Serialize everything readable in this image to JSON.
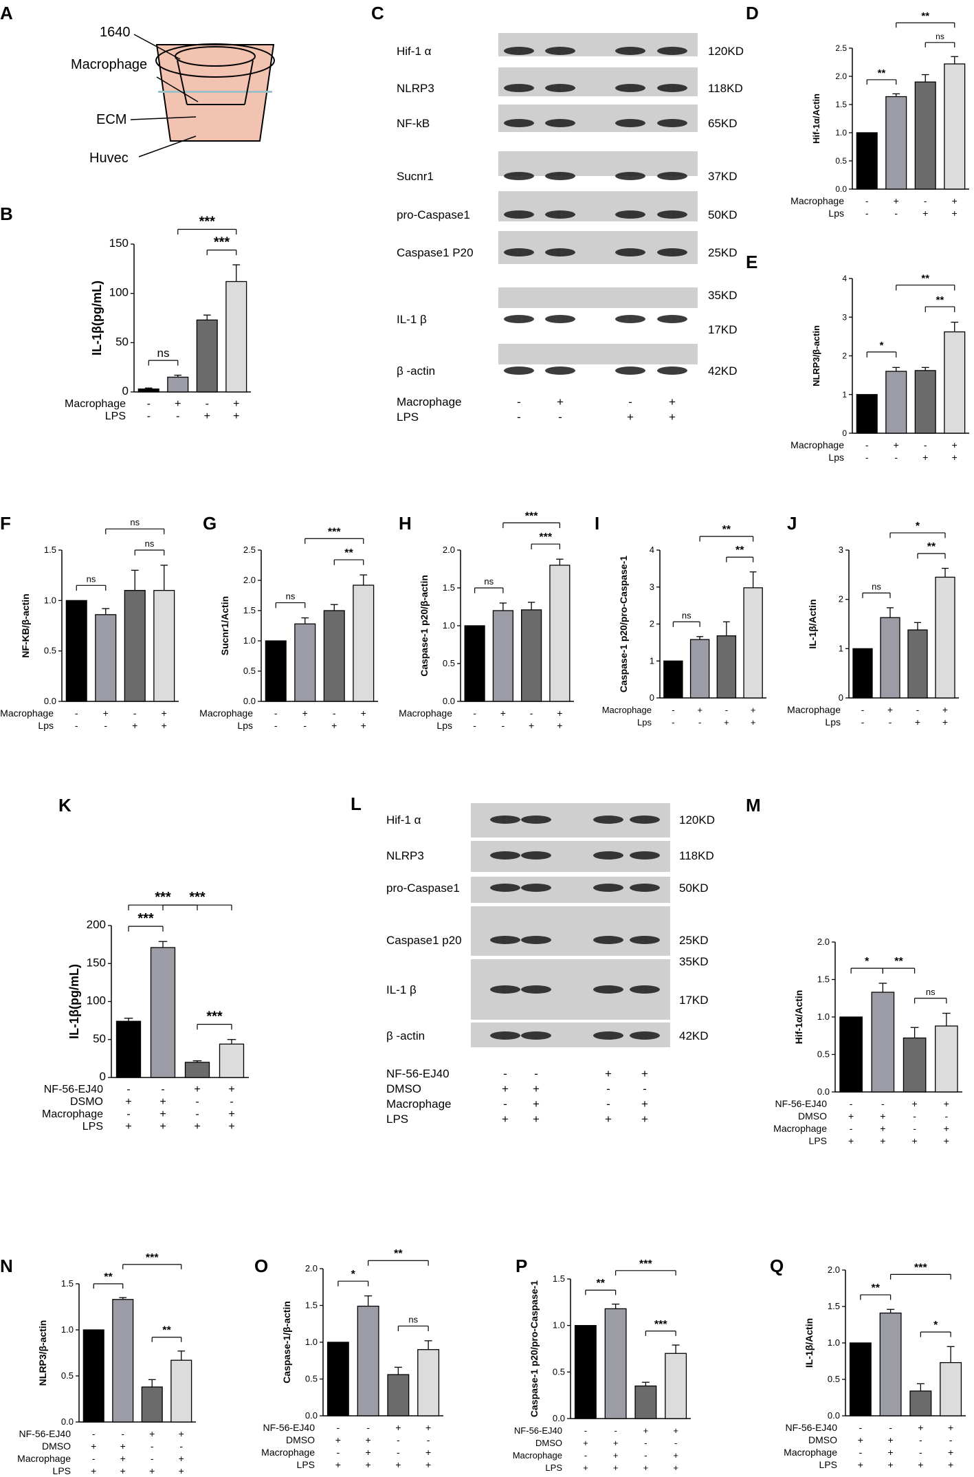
{
  "panel_labels": {
    "A": "A",
    "C": "C",
    "L": "L"
  },
  "schematic": {
    "labels": [
      "1640",
      "Macrophage",
      "ECM",
      "Huvec"
    ]
  },
  "colors": {
    "black": "#000000",
    "dark_gray": "#6b6b6b",
    "mid_gray": "#9c9ca6",
    "light_gray": "#dcdcdc",
    "ecm": "#f2c3b0",
    "medium": "#9cc0c8"
  },
  "blots": [
    {
      "panel": "C",
      "rows": [
        {
          "protein": "Hif-1 α",
          "size": "120KD"
        },
        {
          "protein": "NLRP3",
          "size": "118KD"
        },
        {
          "protein": "NF-kB",
          "size": "65KD"
        },
        {
          "protein": "Sucnr1",
          "size": "37KD"
        },
        {
          "protein": "pro-Caspase1",
          "size": "50KD"
        },
        {
          "protein": "Caspase1 P20",
          "size": "25KD"
        },
        {
          "protein": "IL-1 β",
          "size": "35KD",
          "size2": "17KD"
        },
        {
          "protein": "β -actin",
          "size": "42KD"
        }
      ],
      "conditions": [
        {
          "name": "Macrophage",
          "signs": [
            "-",
            "+",
            "-",
            "+"
          ]
        },
        {
          "name": "LPS",
          "signs": [
            "-",
            "-",
            "+",
            "+"
          ]
        }
      ]
    },
    {
      "panel": "L",
      "rows": [
        {
          "protein": "Hif-1 α",
          "size": "120KD"
        },
        {
          "protein": "NLRP3",
          "size": "118KD"
        },
        {
          "protein": "pro-Caspase1",
          "size": "50KD"
        },
        {
          "protein": "Caspase1 p20",
          "size": "25KD"
        },
        {
          "protein": "IL-1 β",
          "size": "35KD",
          "size2": "17KD"
        },
        {
          "protein": "β -actin",
          "size": "42KD"
        }
      ],
      "conditions": [
        {
          "name": "NF-56-EJ40",
          "signs": [
            "-",
            "-",
            "+",
            "+"
          ]
        },
        {
          "name": "DMSO",
          "signs": [
            "+",
            "+",
            "-",
            "-"
          ]
        },
        {
          "name": "Macrophage",
          "signs": [
            "-",
            "+",
            "-",
            "+"
          ]
        },
        {
          "name": "LPS",
          "signs": [
            "+",
            "+",
            "+",
            "+"
          ]
        }
      ]
    }
  ],
  "chart_data": [
    {
      "panel": "B",
      "type": "bar",
      "ylabel": "IL-1β(pg/mL)",
      "ylim": [
        0,
        150
      ],
      "yticks": [
        "0",
        "50",
        "100",
        "150"
      ],
      "values": [
        3,
        15,
        73,
        112
      ],
      "errors": [
        1,
        2,
        5,
        17
      ],
      "conditions": [
        {
          "name": "Macrophage",
          "signs": [
            "-",
            "+",
            "-",
            "+"
          ]
        },
        {
          "name": "LPS",
          "signs": [
            "-",
            "-",
            "+",
            "+"
          ]
        }
      ],
      "significance": [
        {
          "bars": [
            0,
            1
          ],
          "label": "ns"
        },
        {
          "bars": [
            2,
            3
          ],
          "label": "***"
        },
        {
          "bars": [
            1,
            3
          ],
          "label": "***"
        }
      ]
    },
    {
      "panel": "D",
      "type": "bar",
      "ylabel": "Hif-1α/Actin",
      "ylim": [
        0,
        2.5
      ],
      "yticks": [
        "0.0",
        "0.5",
        "1.0",
        "1.5",
        "2.0",
        "2.5"
      ],
      "values": [
        1.0,
        1.64,
        1.9,
        2.22
      ],
      "errors": [
        0,
        0.05,
        0.13,
        0.13
      ],
      "conditions": [
        {
          "name": "Macrophage",
          "signs": [
            "-",
            "+",
            "-",
            "+"
          ]
        },
        {
          "name": "Lps",
          "signs": [
            "-",
            "-",
            "+",
            "+"
          ]
        }
      ],
      "significance": [
        {
          "bars": [
            0,
            1
          ],
          "label": "**"
        },
        {
          "bars": [
            2,
            3
          ],
          "label": "ns"
        },
        {
          "bars": [
            1,
            3
          ],
          "label": "**"
        }
      ]
    },
    {
      "panel": "E",
      "type": "bar",
      "ylabel": "NLRP3/β-actin",
      "ylim": [
        0,
        4
      ],
      "yticks": [
        "0",
        "1",
        "2",
        "3",
        "4"
      ],
      "values": [
        1.0,
        1.6,
        1.62,
        2.62
      ],
      "errors": [
        0,
        0.1,
        0.08,
        0.25
      ],
      "conditions": [
        {
          "name": "Macrophage",
          "signs": [
            "-",
            "+",
            "-",
            "+"
          ]
        },
        {
          "name": "Lps",
          "signs": [
            "-",
            "-",
            "+",
            "+"
          ]
        }
      ],
      "significance": [
        {
          "bars": [
            0,
            1
          ],
          "label": "*"
        },
        {
          "bars": [
            2,
            3
          ],
          "label": "**"
        },
        {
          "bars": [
            1,
            3
          ],
          "label": "**"
        }
      ]
    },
    {
      "panel": "F",
      "type": "bar",
      "ylabel": "NF-KB/β-actin",
      "ylim": [
        0,
        1.5
      ],
      "yticks": [
        "0.0",
        "0.5",
        "1.0",
        "1.5"
      ],
      "values": [
        1.0,
        0.86,
        1.1,
        1.1
      ],
      "errors": [
        0,
        0.06,
        0.2,
        0.25
      ],
      "conditions": [
        {
          "name": "Macrophage",
          "signs": [
            "-",
            "+",
            "-",
            "+"
          ]
        },
        {
          "name": "Lps",
          "signs": [
            "-",
            "-",
            "+",
            "+"
          ]
        }
      ],
      "significance": [
        {
          "bars": [
            0,
            1
          ],
          "label": "ns"
        },
        {
          "bars": [
            2,
            3
          ],
          "label": "ns"
        },
        {
          "bars": [
            1,
            3
          ],
          "label": "ns"
        }
      ]
    },
    {
      "panel": "G",
      "type": "bar",
      "ylabel": "Sucnr1/Actin",
      "ylim": [
        0,
        2.5
      ],
      "yticks": [
        "0.0",
        "0.5",
        "1.0",
        "1.5",
        "2.0",
        "2.5"
      ],
      "values": [
        1.0,
        1.28,
        1.5,
        1.92
      ],
      "errors": [
        0,
        0.1,
        0.1,
        0.17
      ],
      "conditions": [
        {
          "name": "Macrophage",
          "signs": [
            "-",
            "+",
            "-",
            "+"
          ]
        },
        {
          "name": "Lps",
          "signs": [
            "-",
            "-",
            "+",
            "+"
          ]
        }
      ],
      "significance": [
        {
          "bars": [
            0,
            1
          ],
          "label": "ns"
        },
        {
          "bars": [
            2,
            3
          ],
          "label": "**"
        },
        {
          "bars": [
            1,
            3
          ],
          "label": "***"
        }
      ]
    },
    {
      "panel": "H",
      "type": "bar",
      "ylabel": "Caspase-1 p20/β-actin",
      "ylim": [
        0,
        2.0
      ],
      "yticks": [
        "0.0",
        "0.5",
        "1.0",
        "1.5",
        "2.0"
      ],
      "values": [
        1.0,
        1.2,
        1.21,
        1.8
      ],
      "errors": [
        0,
        0.1,
        0.1,
        0.08
      ],
      "conditions": [
        {
          "name": "Macrophage",
          "signs": [
            "-",
            "+",
            "-",
            "+"
          ]
        },
        {
          "name": "Lps",
          "signs": [
            "-",
            "-",
            "+",
            "+"
          ]
        }
      ],
      "significance": [
        {
          "bars": [
            0,
            1
          ],
          "label": "ns"
        },
        {
          "bars": [
            2,
            3
          ],
          "label": "***"
        },
        {
          "bars": [
            1,
            3
          ],
          "label": "***"
        }
      ]
    },
    {
      "panel": "I",
      "type": "bar",
      "ylabel": "Caspase-1 p20/pro-Caspase-1",
      "ylim": [
        0,
        4
      ],
      "yticks": [
        "0",
        "1",
        "2",
        "3",
        "4"
      ],
      "values": [
        1.0,
        1.58,
        1.68,
        2.98
      ],
      "errors": [
        0,
        0.08,
        0.38,
        0.43
      ],
      "conditions": [
        {
          "name": "Macrophage",
          "signs": [
            "-",
            "+",
            "-",
            "+"
          ]
        },
        {
          "name": "Lps",
          "signs": [
            "-",
            "-",
            "+",
            "+"
          ]
        }
      ],
      "significance": [
        {
          "bars": [
            0,
            1
          ],
          "label": "ns"
        },
        {
          "bars": [
            2,
            3
          ],
          "label": "**"
        },
        {
          "bars": [
            1,
            3
          ],
          "label": "**"
        }
      ]
    },
    {
      "panel": "J",
      "type": "bar",
      "ylabel": "IL-1β/Actin",
      "ylim": [
        0,
        3
      ],
      "yticks": [
        "0",
        "1",
        "2",
        "3"
      ],
      "values": [
        1.0,
        1.63,
        1.38,
        2.45
      ],
      "errors": [
        0,
        0.2,
        0.15,
        0.18
      ],
      "conditions": [
        {
          "name": "Macrophage",
          "signs": [
            "-",
            "+",
            "-",
            "+"
          ]
        },
        {
          "name": "Lps",
          "signs": [
            "-",
            "-",
            "+",
            "+"
          ]
        }
      ],
      "significance": [
        {
          "bars": [
            0,
            1
          ],
          "label": "ns"
        },
        {
          "bars": [
            2,
            3
          ],
          "label": "**"
        },
        {
          "bars": [
            1,
            3
          ],
          "label": "*"
        }
      ]
    },
    {
      "panel": "K",
      "type": "bar",
      "ylabel": "IL-1β(pg/mL)",
      "ylim": [
        0,
        200
      ],
      "yticks": [
        "0",
        "50",
        "100",
        "150",
        "200"
      ],
      "values": [
        74,
        171,
        20,
        44
      ],
      "errors": [
        4,
        8,
        2,
        6
      ],
      "conditions": [
        {
          "name": "NF-56-EJ40",
          "signs": [
            "-",
            "-",
            "+",
            "+"
          ]
        },
        {
          "name": "DSMO",
          "signs": [
            "+",
            "+",
            "-",
            "-"
          ]
        },
        {
          "name": "Macrophage",
          "signs": [
            "-",
            "+",
            "-",
            "+"
          ]
        },
        {
          "name": "LPS",
          "signs": [
            "+",
            "+",
            "+",
            "+"
          ]
        }
      ],
      "significance": [
        {
          "bars": [
            0,
            1
          ],
          "label": "***"
        },
        {
          "bars": [
            2,
            3
          ],
          "label": "***"
        },
        {
          "bars": [
            0,
            2
          ],
          "label": "***"
        },
        {
          "bars": [
            1,
            3
          ],
          "label": "***"
        }
      ]
    },
    {
      "panel": "M",
      "type": "bar",
      "ylabel": "Hif-1α/Actin",
      "ylim": [
        0,
        2.0
      ],
      "yticks": [
        "0.0",
        "0.5",
        "1.0",
        "1.5",
        "2.0"
      ],
      "values": [
        1.0,
        1.33,
        0.72,
        0.88
      ],
      "errors": [
        0,
        0.12,
        0.14,
        0.17
      ],
      "conditions": [
        {
          "name": "NF-56-EJ40",
          "signs": [
            "-",
            "-",
            "+",
            "+"
          ]
        },
        {
          "name": "DMSO",
          "signs": [
            "+",
            "+",
            "-",
            "-"
          ]
        },
        {
          "name": "Macrophage",
          "signs": [
            "-",
            "+",
            "-",
            "+"
          ]
        },
        {
          "name": "LPS",
          "signs": [
            "+",
            "+",
            "+",
            "+"
          ]
        }
      ],
      "significance": [
        {
          "bars": [
            0,
            1
          ],
          "label": "*"
        },
        {
          "bars": [
            2,
            3
          ],
          "label": "ns"
        },
        {
          "bars": [
            1,
            2
          ],
          "label": "**"
        }
      ]
    },
    {
      "panel": "N",
      "type": "bar",
      "ylabel": "NLRP3/β-actin",
      "ylim": [
        0,
        1.5
      ],
      "yticks": [
        "0.0",
        "0.5",
        "1.0",
        "1.5"
      ],
      "values": [
        1.0,
        1.33,
        0.38,
        0.67
      ],
      "errors": [
        0,
        0.02,
        0.08,
        0.1
      ],
      "conditions": [
        {
          "name": "NF-56-EJ40",
          "signs": [
            "-",
            "-",
            "+",
            "+"
          ]
        },
        {
          "name": "DMSO",
          "signs": [
            "+",
            "+",
            "-",
            "-"
          ]
        },
        {
          "name": "Macrophage",
          "signs": [
            "-",
            "+",
            "-",
            "+"
          ]
        },
        {
          "name": "LPS",
          "signs": [
            "+",
            "+",
            "+",
            "+"
          ]
        }
      ],
      "significance": [
        {
          "bars": [
            0,
            1
          ],
          "label": "**"
        },
        {
          "bars": [
            2,
            3
          ],
          "label": "**"
        },
        {
          "bars": [
            1,
            3
          ],
          "label": "***"
        }
      ]
    },
    {
      "panel": "O",
      "type": "bar",
      "ylabel": "Caspase-1/β-actin",
      "ylim": [
        0,
        2.0
      ],
      "yticks": [
        "0.0",
        "0.5",
        "1.0",
        "1.5",
        "2.0"
      ],
      "values": [
        1.0,
        1.49,
        0.56,
        0.9
      ],
      "errors": [
        0,
        0.14,
        0.1,
        0.12
      ],
      "conditions": [
        {
          "name": "NF-56-EJ40",
          "signs": [
            "-",
            "-",
            "+",
            "+"
          ]
        },
        {
          "name": "DMSO",
          "signs": [
            "+",
            "+",
            "-",
            "-"
          ]
        },
        {
          "name": "Macrophage",
          "signs": [
            "-",
            "+",
            "-",
            "+"
          ]
        },
        {
          "name": "LPS",
          "signs": [
            "+",
            "+",
            "+",
            "+"
          ]
        }
      ],
      "significance": [
        {
          "bars": [
            0,
            1
          ],
          "label": "*"
        },
        {
          "bars": [
            2,
            3
          ],
          "label": "ns"
        },
        {
          "bars": [
            1,
            3
          ],
          "label": "**"
        }
      ]
    },
    {
      "panel": "P",
      "type": "bar",
      "ylabel": "Caspase-1 p20/pro-Caspase-1",
      "ylim": [
        0,
        1.5
      ],
      "yticks": [
        "0.0",
        "0.5",
        "1.0",
        "1.5"
      ],
      "values": [
        1.0,
        1.18,
        0.35,
        0.7
      ],
      "errors": [
        0,
        0.05,
        0.04,
        0.09
      ],
      "conditions": [
        {
          "name": "NF-56-EJ40",
          "signs": [
            "-",
            "-",
            "+",
            "+"
          ]
        },
        {
          "name": "DMSO",
          "signs": [
            "+",
            "+",
            "-",
            "-"
          ]
        },
        {
          "name": "Macrophage",
          "signs": [
            "-",
            "+",
            "-",
            "+"
          ]
        },
        {
          "name": "LPS",
          "signs": [
            "+",
            "+",
            "+",
            "+"
          ]
        }
      ],
      "significance": [
        {
          "bars": [
            0,
            1
          ],
          "label": "**"
        },
        {
          "bars": [
            2,
            3
          ],
          "label": "***"
        },
        {
          "bars": [
            1,
            3
          ],
          "label": "***"
        }
      ]
    },
    {
      "panel": "Q",
      "type": "bar",
      "ylabel": "IL-1β/Actin",
      "ylim": [
        0,
        2.0
      ],
      "yticks": [
        "0.0",
        "0.5",
        "1.0",
        "1.5",
        "2.0"
      ],
      "values": [
        1.0,
        1.41,
        0.34,
        0.73
      ],
      "errors": [
        0,
        0.05,
        0.1,
        0.22
      ],
      "conditions": [
        {
          "name": "NF-56-EJ40",
          "signs": [
            "-",
            "-",
            "+",
            "+"
          ]
        },
        {
          "name": "DMSO",
          "signs": [
            "+",
            "+",
            "-",
            "-"
          ]
        },
        {
          "name": "Macrophage",
          "signs": [
            "-",
            "+",
            "-",
            "+"
          ]
        },
        {
          "name": "LPS",
          "signs": [
            "+",
            "+",
            "+",
            "+"
          ]
        }
      ],
      "significance": [
        {
          "bars": [
            0,
            1
          ],
          "label": "**"
        },
        {
          "bars": [
            2,
            3
          ],
          "label": "*"
        },
        {
          "bars": [
            1,
            3
          ],
          "label": "***"
        }
      ]
    }
  ]
}
